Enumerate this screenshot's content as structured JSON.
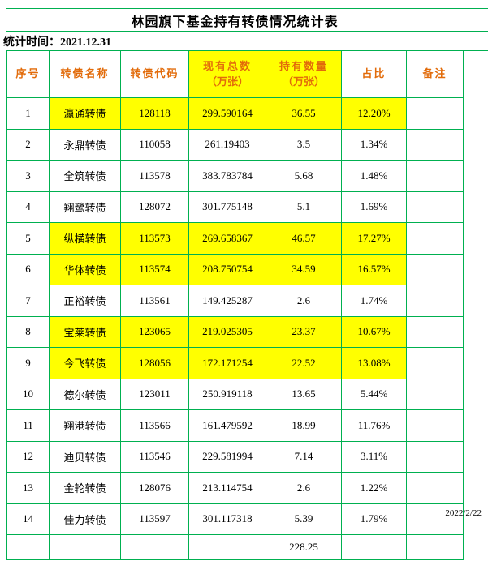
{
  "title": "林园旗下基金持有转债情况统计表",
  "stat_time": "统计时间：2021.12.31",
  "footer_date": "2022/2/22",
  "colors": {
    "border_green": "#00b050",
    "header_text": "#e26b0a",
    "highlight": "#ffff00"
  },
  "table": {
    "headers": [
      {
        "key": "no",
        "text": "序号"
      },
      {
        "key": "name",
        "text": "转债名称"
      },
      {
        "key": "code",
        "text": "转债代码"
      },
      {
        "key": "total",
        "text": "现有总数",
        "sub": "（万张）",
        "highlight": true
      },
      {
        "key": "held",
        "text": "持有数量",
        "sub": "（万张）",
        "highlight": true
      },
      {
        "key": "pct",
        "text": "占比"
      },
      {
        "key": "note",
        "text": "备注"
      }
    ],
    "rows": [
      {
        "no": "1",
        "name": "瀛通转债",
        "code": "128118",
        "total": "299.590164",
        "held": "36.55",
        "pct": "12.20%",
        "note": "",
        "highlight": true
      },
      {
        "no": "2",
        "name": "永鼎转债",
        "code": "110058",
        "total": "261.19403",
        "held": "3.5",
        "pct": "1.34%",
        "note": "",
        "highlight": false
      },
      {
        "no": "3",
        "name": "全筑转债",
        "code": "113578",
        "total": "383.783784",
        "held": "5.68",
        "pct": "1.48%",
        "note": "",
        "highlight": false
      },
      {
        "no": "4",
        "name": "翔鹭转债",
        "code": "128072",
        "total": "301.775148",
        "held": "5.1",
        "pct": "1.69%",
        "note": "",
        "highlight": false
      },
      {
        "no": "5",
        "name": "纵横转债",
        "code": "113573",
        "total": "269.658367",
        "held": "46.57",
        "pct": "17.27%",
        "note": "",
        "highlight": true
      },
      {
        "no": "6",
        "name": "华体转债",
        "code": "113574",
        "total": "208.750754",
        "held": "34.59",
        "pct": "16.57%",
        "note": "",
        "highlight": true
      },
      {
        "no": "7",
        "name": "正裕转债",
        "code": "113561",
        "total": "149.425287",
        "held": "2.6",
        "pct": "1.74%",
        "note": "",
        "highlight": false
      },
      {
        "no": "8",
        "name": "宝莱转债",
        "code": "123065",
        "total": "219.025305",
        "held": "23.37",
        "pct": "10.67%",
        "note": "",
        "highlight": true
      },
      {
        "no": "9",
        "name": "今飞转债",
        "code": "128056",
        "total": "172.171254",
        "held": "22.52",
        "pct": "13.08%",
        "note": "",
        "highlight": true
      },
      {
        "no": "10",
        "name": "德尔转债",
        "code": "123011",
        "total": "250.919118",
        "held": "13.65",
        "pct": "5.44%",
        "note": "",
        "highlight": false
      },
      {
        "no": "11",
        "name": "翔港转债",
        "code": "113566",
        "total": "161.479592",
        "held": "18.99",
        "pct": "11.76%",
        "note": "",
        "highlight": false
      },
      {
        "no": "12",
        "name": "迪贝转债",
        "code": "113546",
        "total": "229.581994",
        "held": "7.14",
        "pct": "3.11%",
        "note": "",
        "highlight": false
      },
      {
        "no": "13",
        "name": "金轮转债",
        "code": "128076",
        "total": "213.114754",
        "held": "2.6",
        "pct": "1.22%",
        "note": "",
        "highlight": false
      },
      {
        "no": "14",
        "name": "佳力转债",
        "code": "113597",
        "total": "301.117318",
        "held": "5.39",
        "pct": "1.79%",
        "note": "",
        "highlight": false
      }
    ],
    "total_row": {
      "no": "",
      "name": "",
      "code": "",
      "total": "",
      "held": "228.25",
      "pct": "",
      "note": ""
    }
  }
}
